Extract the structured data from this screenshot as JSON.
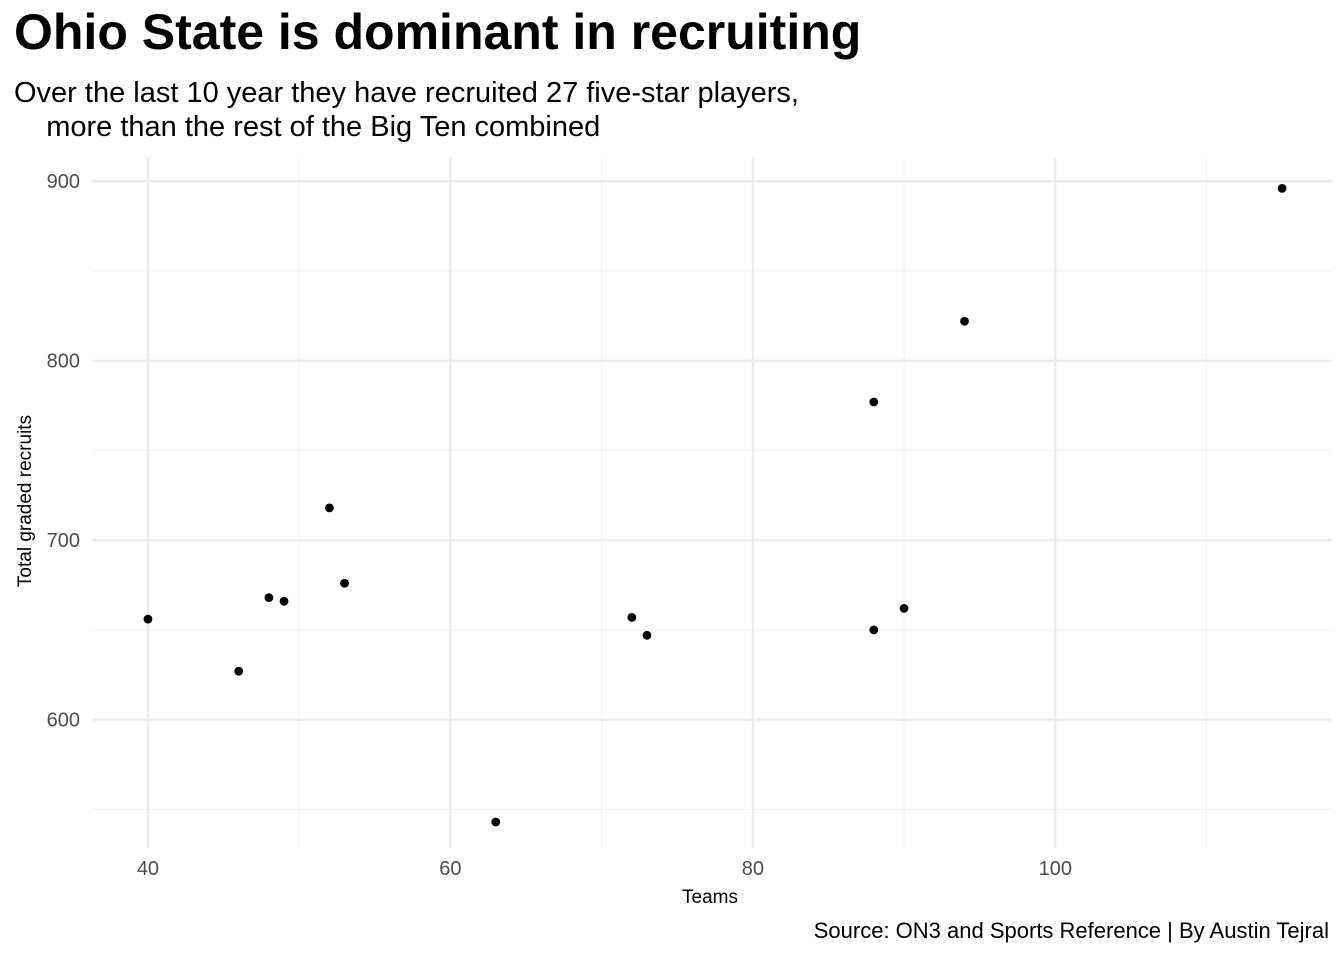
{
  "chart_data": {
    "type": "scatter",
    "title": "Ohio State is dominant in recruiting",
    "subtitle": "Over the last 10 year they have recruited 27 five-star players,\n    more than the rest of the Big Ten combined",
    "caption": "Source: ON3 and Sports Reference | By Austin Tejral",
    "xlabel": "Teams",
    "ylabel": "Total graded recruits",
    "xlim": [
      36.3,
      118.3
    ],
    "ylim": [
      528.5,
      913.5
    ],
    "x_ticks": [
      40,
      60,
      80,
      100
    ],
    "y_ticks": [
      600,
      700,
      800,
      900
    ],
    "grid": true,
    "point_color": "#000000",
    "grid_color": "#ebebeb",
    "points": [
      {
        "x": 40,
        "y": 656
      },
      {
        "x": 46,
        "y": 627
      },
      {
        "x": 48,
        "y": 668
      },
      {
        "x": 49,
        "y": 666
      },
      {
        "x": 52,
        "y": 718
      },
      {
        "x": 53,
        "y": 676
      },
      {
        "x": 63,
        "y": 543
      },
      {
        "x": 72,
        "y": 657
      },
      {
        "x": 73,
        "y": 647
      },
      {
        "x": 88,
        "y": 777
      },
      {
        "x": 88,
        "y": 650
      },
      {
        "x": 90,
        "y": 662
      },
      {
        "x": 94,
        "y": 822
      },
      {
        "x": 115,
        "y": 896
      }
    ]
  }
}
